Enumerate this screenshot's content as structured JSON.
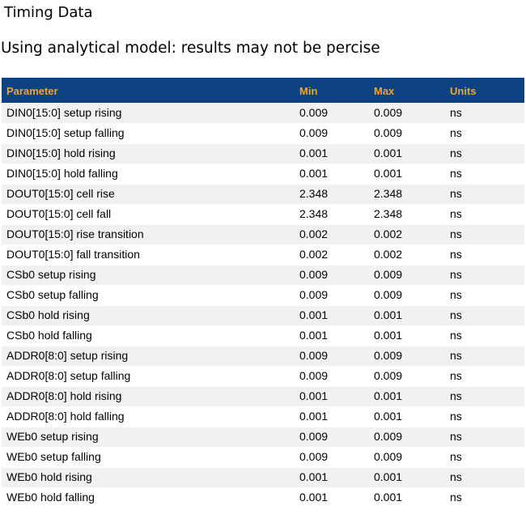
{
  "page": {
    "title": "Timing Data",
    "subtitle": "Using analytical model: results may not be percise"
  },
  "colors": {
    "header_bg": "#0d4281",
    "header_text": "#eea62f",
    "row_stripe_bg": "#f0f1f0",
    "row_bg": "#ffffff",
    "body_text": "#000000"
  },
  "table": {
    "columns": [
      "Parameter",
      "Min",
      "Max",
      "Units"
    ],
    "rows": [
      {
        "parameter": "DIN0[15:0] setup rising",
        "min": "0.009",
        "max": "0.009",
        "units": "ns"
      },
      {
        "parameter": "DIN0[15:0] setup falling",
        "min": "0.009",
        "max": "0.009",
        "units": "ns"
      },
      {
        "parameter": "DIN0[15:0] hold rising",
        "min": "0.001",
        "max": "0.001",
        "units": "ns"
      },
      {
        "parameter": "DIN0[15:0] hold falling",
        "min": "0.001",
        "max": "0.001",
        "units": "ns"
      },
      {
        "parameter": "DOUT0[15:0] cell rise",
        "min": "2.348",
        "max": "2.348",
        "units": "ns"
      },
      {
        "parameter": "DOUT0[15:0] cell fall",
        "min": "2.348",
        "max": "2.348",
        "units": "ns"
      },
      {
        "parameter": "DOUT0[15:0] rise transition",
        "min": "0.002",
        "max": "0.002",
        "units": "ns"
      },
      {
        "parameter": "DOUT0[15:0] fall transition",
        "min": "0.002",
        "max": "0.002",
        "units": "ns"
      },
      {
        "parameter": "CSb0 setup rising",
        "min": "0.009",
        "max": "0.009",
        "units": "ns"
      },
      {
        "parameter": "CSb0 setup falling",
        "min": "0.009",
        "max": "0.009",
        "units": "ns"
      },
      {
        "parameter": "CSb0 hold rising",
        "min": "0.001",
        "max": "0.001",
        "units": "ns"
      },
      {
        "parameter": "CSb0 hold falling",
        "min": "0.001",
        "max": "0.001",
        "units": "ns"
      },
      {
        "parameter": "ADDR0[8:0] setup rising",
        "min": "0.009",
        "max": "0.009",
        "units": "ns"
      },
      {
        "parameter": "ADDR0[8:0] setup falling",
        "min": "0.009",
        "max": "0.009",
        "units": "ns"
      },
      {
        "parameter": "ADDR0[8:0] hold rising",
        "min": "0.001",
        "max": "0.001",
        "units": "ns"
      },
      {
        "parameter": "ADDR0[8:0] hold falling",
        "min": "0.001",
        "max": "0.001",
        "units": "ns"
      },
      {
        "parameter": "WEb0 setup rising",
        "min": "0.009",
        "max": "0.009",
        "units": "ns"
      },
      {
        "parameter": "WEb0 setup falling",
        "min": "0.009",
        "max": "0.009",
        "units": "ns"
      },
      {
        "parameter": "WEb0 hold rising",
        "min": "0.001",
        "max": "0.001",
        "units": "ns"
      },
      {
        "parameter": "WEb0 hold falling",
        "min": "0.001",
        "max": "0.001",
        "units": "ns"
      }
    ]
  }
}
